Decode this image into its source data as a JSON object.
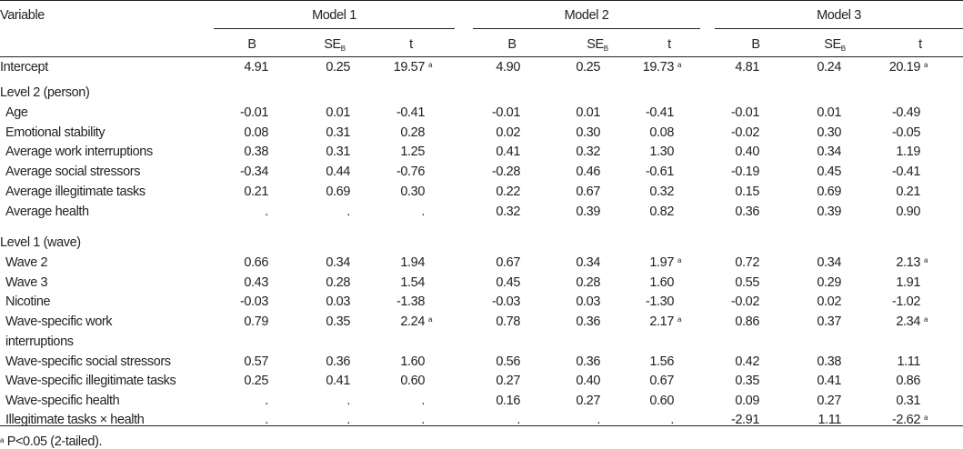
{
  "header": {
    "variable": "Variable",
    "models": [
      "Model 1",
      "Model 2",
      "Model 3"
    ],
    "subcols": [
      {
        "main": "B",
        "sub": ""
      },
      {
        "main": "SE",
        "sub": "B"
      },
      {
        "main": "t",
        "sub": ""
      }
    ]
  },
  "rows": [
    {
      "label": "Intercept",
      "indent": false,
      "cells": [
        {
          "v": "4.91"
        },
        {
          "v": "0.25"
        },
        {
          "v": "19.57",
          "sup": "a"
        },
        {
          "v": "4.90"
        },
        {
          "v": "0.25"
        },
        {
          "v": "19.73",
          "sup": "a"
        },
        {
          "v": "4.81"
        },
        {
          "v": "0.24"
        },
        {
          "v": "20.19",
          "sup": "a"
        }
      ]
    },
    {
      "label": "Level 2 (person)",
      "indent": false,
      "section": true,
      "cells": []
    },
    {
      "label": "Age",
      "indent": true,
      "cells": [
        {
          "v": "-0.01"
        },
        {
          "v": "0.01"
        },
        {
          "v": "-0.41"
        },
        {
          "v": "-0.01"
        },
        {
          "v": "0.01"
        },
        {
          "v": "-0.41"
        },
        {
          "v": "-0.01"
        },
        {
          "v": "0.01"
        },
        {
          "v": "-0.49"
        }
      ]
    },
    {
      "label": "Emotional stability",
      "indent": true,
      "cells": [
        {
          "v": "0.08"
        },
        {
          "v": "0.31"
        },
        {
          "v": "0.28"
        },
        {
          "v": "0.02"
        },
        {
          "v": "0.30"
        },
        {
          "v": "0.08"
        },
        {
          "v": "-0.02"
        },
        {
          "v": "0.30"
        },
        {
          "v": "-0.05"
        }
      ]
    },
    {
      "label": "Average work interruptions",
      "indent": true,
      "cells": [
        {
          "v": "0.38"
        },
        {
          "v": "0.31"
        },
        {
          "v": "1.25"
        },
        {
          "v": "0.41"
        },
        {
          "v": "0.32"
        },
        {
          "v": "1.30"
        },
        {
          "v": "0.40"
        },
        {
          "v": "0.34"
        },
        {
          "v": "1.19"
        }
      ]
    },
    {
      "label": "Average social stressors",
      "indent": true,
      "cells": [
        {
          "v": "-0.34"
        },
        {
          "v": "0.44"
        },
        {
          "v": "-0.76"
        },
        {
          "v": "-0.28"
        },
        {
          "v": "0.46"
        },
        {
          "v": "-0.61"
        },
        {
          "v": "-0.19"
        },
        {
          "v": "0.45"
        },
        {
          "v": "-0.41"
        }
      ]
    },
    {
      "label": "Average illegitimate tasks",
      "indent": true,
      "cells": [
        {
          "v": "0.21"
        },
        {
          "v": "0.69"
        },
        {
          "v": "0.30"
        },
        {
          "v": "0.22"
        },
        {
          "v": "0.67"
        },
        {
          "v": "0.32"
        },
        {
          "v": "0.15"
        },
        {
          "v": "0.69"
        },
        {
          "v": "0.21"
        }
      ]
    },
    {
      "label": "Average health",
      "indent": true,
      "cells": [
        {
          "v": "."
        },
        {
          "v": "."
        },
        {
          "v": "."
        },
        {
          "v": "0.32"
        },
        {
          "v": "0.39"
        },
        {
          "v": "0.82"
        },
        {
          "v": "0.36"
        },
        {
          "v": "0.39"
        },
        {
          "v": "0.90"
        }
      ]
    },
    {
      "label": "Level 1 (wave)",
      "indent": false,
      "section": true,
      "cells": []
    },
    {
      "label": "Wave 2",
      "indent": true,
      "cells": [
        {
          "v": "0.66"
        },
        {
          "v": "0.34"
        },
        {
          "v": "1.94"
        },
        {
          "v": "0.67"
        },
        {
          "v": "0.34"
        },
        {
          "v": "1.97",
          "sup": "a"
        },
        {
          "v": "0.72"
        },
        {
          "v": "0.34"
        },
        {
          "v": "2.13",
          "sup": "a"
        }
      ]
    },
    {
      "label": "Wave 3",
      "indent": true,
      "cells": [
        {
          "v": "0.43"
        },
        {
          "v": "0.28"
        },
        {
          "v": "1.54"
        },
        {
          "v": "0.45"
        },
        {
          "v": "0.28"
        },
        {
          "v": "1.60"
        },
        {
          "v": "0.55"
        },
        {
          "v": "0.29"
        },
        {
          "v": "1.91"
        }
      ]
    },
    {
      "label": "Nicotine",
      "indent": true,
      "cells": [
        {
          "v": "-0.03"
        },
        {
          "v": "0.03"
        },
        {
          "v": "-1.38"
        },
        {
          "v": "-0.03"
        },
        {
          "v": "0.03"
        },
        {
          "v": "-1.30"
        },
        {
          "v": "-0.02"
        },
        {
          "v": "0.02"
        },
        {
          "v": "-1.02"
        }
      ]
    },
    {
      "label": "Wave-specific work",
      "label2": "interruptions",
      "indent": true,
      "cells": [
        {
          "v": "0.79"
        },
        {
          "v": "0.35"
        },
        {
          "v": "2.24",
          "sup": "a"
        },
        {
          "v": "0.78"
        },
        {
          "v": "0.36"
        },
        {
          "v": "2.17",
          "sup": "a"
        },
        {
          "v": "0.86"
        },
        {
          "v": "0.37"
        },
        {
          "v": "2.34",
          "sup": "a"
        }
      ]
    },
    {
      "label": "Wave-specific social stressors",
      "indent": true,
      "cells": [
        {
          "v": "0.57"
        },
        {
          "v": "0.36"
        },
        {
          "v": "1.60"
        },
        {
          "v": "0.56"
        },
        {
          "v": "0.36"
        },
        {
          "v": "1.56"
        },
        {
          "v": "0.42"
        },
        {
          "v": "0.38"
        },
        {
          "v": "1.11"
        }
      ]
    },
    {
      "label": "Wave-specific illegitimate tasks",
      "indent": true,
      "cells": [
        {
          "v": "0.25"
        },
        {
          "v": "0.41"
        },
        {
          "v": "0.60"
        },
        {
          "v": "0.27"
        },
        {
          "v": "0.40"
        },
        {
          "v": "0.67"
        },
        {
          "v": "0.35"
        },
        {
          "v": "0.41"
        },
        {
          "v": "0.86"
        }
      ]
    },
    {
      "label": "Wave-specific health",
      "indent": true,
      "cells": [
        {
          "v": "."
        },
        {
          "v": "."
        },
        {
          "v": "."
        },
        {
          "v": "0.16"
        },
        {
          "v": "0.27"
        },
        {
          "v": "0.60"
        },
        {
          "v": "0.09"
        },
        {
          "v": "0.27"
        },
        {
          "v": "0.31"
        }
      ]
    },
    {
      "label": "Illegitimate tasks × health",
      "indent": true,
      "cells": [
        {
          "v": "."
        },
        {
          "v": "."
        },
        {
          "v": "."
        },
        {
          "v": "."
        },
        {
          "v": "."
        },
        {
          "v": "."
        },
        {
          "v": "-2.91"
        },
        {
          "v": "1.11"
        },
        {
          "v": "-2.62",
          "sup": "a"
        }
      ]
    }
  ],
  "footnote": {
    "sup": "a",
    "text": "P<0.05 (2-tailed)."
  }
}
